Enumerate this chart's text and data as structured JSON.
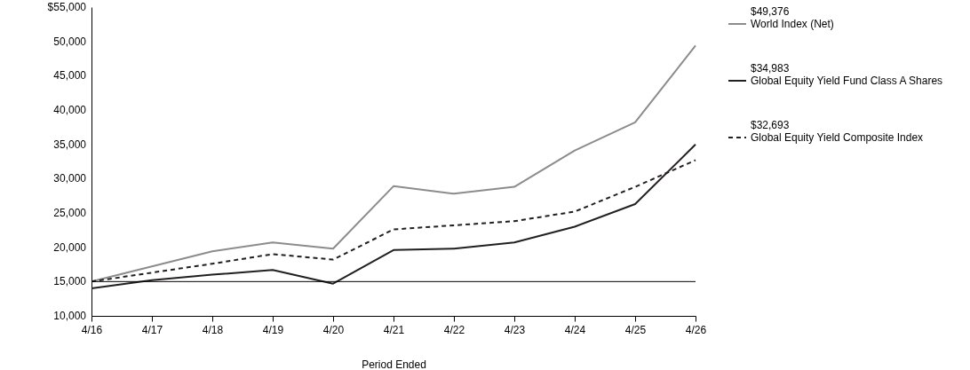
{
  "chart_data": {
    "type": "line",
    "xlabel": "Period Ended",
    "categories": [
      "4/16",
      "4/17",
      "4/18",
      "4/19",
      "4/20",
      "4/21",
      "4/22",
      "4/23",
      "4/24",
      "4/25",
      "4/26"
    ],
    "series": [
      {
        "name": "World Index (Net)",
        "color": "#8c8c8c",
        "line_style": "solid",
        "values": [
          15000,
          17200,
          19400,
          20700,
          19800,
          28900,
          27800,
          28800,
          34100,
          38200,
          49376
        ]
      },
      {
        "name": "Global Equity Yield Fund Class A Shares",
        "color": "#231f20",
        "line_style": "solid",
        "values": [
          14000,
          15200,
          16000,
          16700,
          14700,
          19600,
          19800,
          20700,
          23000,
          26300,
          34983
        ]
      },
      {
        "name": "Global Equity Yield Composite Index",
        "color": "#231f20",
        "line_style": "dashed",
        "values": [
          15000,
          16300,
          17600,
          19000,
          18200,
          22600,
          23200,
          23800,
          25200,
          28800,
          32693
        ]
      }
    ],
    "annotations": [
      "$49,376",
      "$34,983",
      "$32,693"
    ],
    "ylim": [
      10000,
      55000
    ],
    "yticks": [
      {
        "value": 10000,
        "label": "10,000"
      },
      {
        "value": 15000,
        "label": "15,000"
      },
      {
        "value": 20000,
        "label": "20,000"
      },
      {
        "value": 25000,
        "label": "25,000"
      },
      {
        "value": 30000,
        "label": "30,000"
      },
      {
        "value": 35000,
        "label": "35,000"
      },
      {
        "value": 40000,
        "label": "40,000"
      },
      {
        "value": 45000,
        "label": "45,000"
      },
      {
        "value": 50000,
        "label": "50,000"
      },
      {
        "value": 55000,
        "label": "$55,000"
      }
    ],
    "ref_lines": [
      {
        "axis": "y",
        "value": 15000,
        "color": "#000000"
      }
    ],
    "grid": false,
    "legend": "right",
    "marker": "none"
  }
}
